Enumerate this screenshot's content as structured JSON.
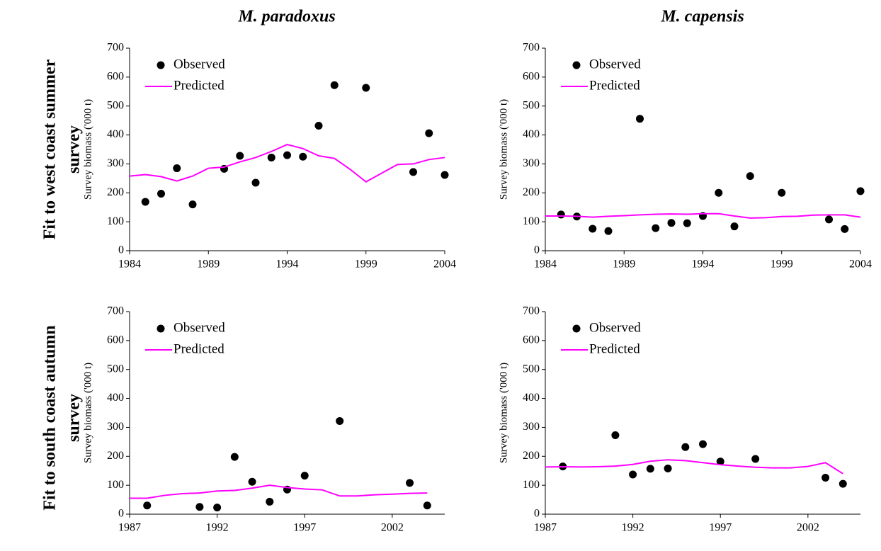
{
  "column_titles": [
    "M. paradoxus",
    "M. capensis"
  ],
  "row_titles": [
    [
      "Fit to west coast summer",
      "survey"
    ],
    [
      "Fit to south coast autumn",
      "survey"
    ]
  ],
  "chart_data": [
    {
      "type": "line",
      "y_label": "Survey biomass ('000 t)",
      "legend": "upper left",
      "xlim": [
        1984,
        2004
      ],
      "xticks": [
        1984,
        1989,
        1994,
        1999,
        2004
      ],
      "ylim": [
        0,
        700
      ],
      "yticks": [
        0,
        100,
        200,
        300,
        400,
        500,
        600,
        700
      ],
      "series": [
        {
          "name": "Observed",
          "color": "#000000",
          "marker": "circle",
          "x": [
            1985,
            1986,
            1987,
            1988,
            1990,
            1991,
            1992,
            1993,
            1994,
            1995,
            1996,
            1997,
            1999,
            2002,
            2003,
            2004
          ],
          "values": [
            169,
            197,
            285,
            160,
            283,
            328,
            235,
            322,
            330,
            325,
            432,
            572,
            563,
            272,
            406,
            262
          ]
        },
        {
          "name": "Predicted",
          "color": "#ff00ff",
          "x": [
            1984,
            1985,
            1986,
            1987,
            1988,
            1989,
            1990,
            1991,
            1992,
            1993,
            1994,
            1995,
            1996,
            1997,
            1998,
            1999,
            2000,
            2001,
            2002,
            2003,
            2004
          ],
          "values": [
            258,
            263,
            256,
            241,
            258,
            285,
            289,
            307,
            322,
            343,
            367,
            353,
            328,
            319,
            281,
            238,
            268,
            298,
            300,
            315,
            322
          ]
        }
      ]
    },
    {
      "type": "line",
      "y_label": "Survey biomass ('000 t)",
      "legend": "upper left",
      "xlim": [
        1984,
        2004
      ],
      "xticks": [
        1984,
        1989,
        1994,
        1999,
        2004
      ],
      "ylim": [
        0,
        700
      ],
      "yticks": [
        0,
        100,
        200,
        300,
        400,
        500,
        600,
        700
      ],
      "series": [
        {
          "name": "Observed",
          "color": "#000000",
          "marker": "circle",
          "x": [
            1985,
            1986,
            1987,
            1988,
            1990,
            1991,
            1992,
            1993,
            1994,
            1995,
            1996,
            1997,
            1999,
            2002,
            2003,
            2004
          ],
          "values": [
            125,
            118,
            76,
            68,
            456,
            78,
            96,
            95,
            120,
            200,
            84,
            258,
            200,
            108,
            75,
            206
          ]
        },
        {
          "name": "Predicted",
          "color": "#ff00ff",
          "x": [
            1984,
            1985,
            1986,
            1987,
            1988,
            1989,
            1990,
            1991,
            1992,
            1993,
            1994,
            1995,
            1996,
            1997,
            1998,
            1999,
            2000,
            2001,
            2002,
            2003,
            2004
          ],
          "values": [
            120,
            120,
            119,
            116,
            119,
            121,
            124,
            126,
            127,
            126,
            128,
            128,
            120,
            113,
            114,
            118,
            119,
            123,
            124,
            124,
            116
          ]
        }
      ]
    },
    {
      "type": "line",
      "y_label": "Survey biomass ('000 t)",
      "legend": "upper left",
      "xlim": [
        1987,
        2005
      ],
      "xticks": [
        1987,
        1992,
        1997,
        2002
      ],
      "ylim": [
        0,
        700
      ],
      "yticks": [
        0,
        100,
        200,
        300,
        400,
        500,
        600,
        700
      ],
      "series": [
        {
          "name": "Observed",
          "color": "#000000",
          "marker": "circle",
          "x": [
            1988,
            1991,
            1992,
            1993,
            1994,
            1995,
            1996,
            1997,
            1999,
            2003,
            2004
          ],
          "values": [
            30,
            25,
            23,
            198,
            112,
            43,
            85,
            133,
            322,
            108,
            30
          ]
        },
        {
          "name": "Predicted",
          "color": "#ff00ff",
          "x": [
            1987,
            1988,
            1989,
            1990,
            1991,
            1992,
            1993,
            1994,
            1995,
            1996,
            1997,
            1998,
            1999,
            2000,
            2001,
            2002,
            2003,
            2004
          ],
          "values": [
            55,
            55,
            65,
            71,
            73,
            80,
            82,
            90,
            100,
            92,
            87,
            84,
            63,
            63,
            67,
            69,
            72,
            73
          ]
        }
      ]
    },
    {
      "type": "line",
      "y_label": "Survey biomass ('000 t)",
      "legend": "upper left",
      "xlim": [
        1987,
        2005
      ],
      "xticks": [
        1987,
        1992,
        1997,
        2002
      ],
      "ylim": [
        0,
        700
      ],
      "yticks": [
        0,
        100,
        200,
        300,
        400,
        500,
        600,
        700
      ],
      "series": [
        {
          "name": "Observed",
          "color": "#000000",
          "marker": "circle",
          "x": [
            1988,
            1991,
            1992,
            1993,
            1994,
            1995,
            1996,
            1997,
            1999,
            2003,
            2004
          ],
          "values": [
            165,
            273,
            137,
            157,
            158,
            232,
            242,
            182,
            191,
            126,
            105
          ]
        },
        {
          "name": "Predicted",
          "color": "#ff00ff",
          "x": [
            1987,
            1988,
            1989,
            1990,
            1991,
            1992,
            1993,
            1994,
            1995,
            1996,
            1997,
            1998,
            1999,
            2000,
            2001,
            2002,
            2003,
            2004
          ],
          "values": [
            163,
            164,
            163,
            164,
            166,
            172,
            183,
            188,
            185,
            178,
            171,
            166,
            162,
            160,
            160,
            165,
            178,
            140
          ]
        }
      ]
    }
  ]
}
